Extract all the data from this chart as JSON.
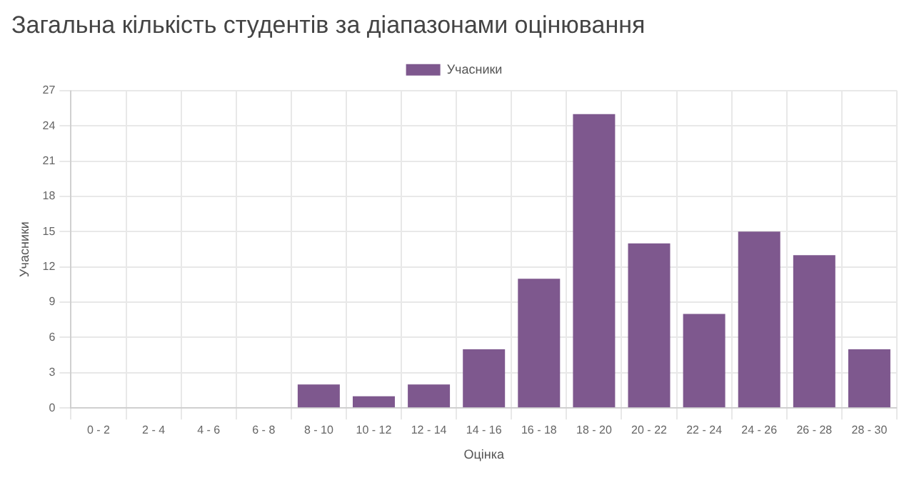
{
  "chart_data": {
    "type": "bar",
    "title": "Загальна кількість студентів за діапазонами оцінювання",
    "xlabel": "Оцінка",
    "ylabel": "Учасники",
    "categories": [
      "0 - 2",
      "2 - 4",
      "4 - 6",
      "6 - 8",
      "8 - 10",
      "10 - 12",
      "12 - 14",
      "14 - 16",
      "16 - 18",
      "18 - 20",
      "20 - 22",
      "22 - 24",
      "24 - 26",
      "26 - 28",
      "28 - 30"
    ],
    "series": [
      {
        "name": "Учасники",
        "color": "#7e588e",
        "values": [
          0,
          0,
          0,
          0,
          2,
          1,
          2,
          5,
          11,
          25,
          14,
          8,
          15,
          13,
          5
        ]
      }
    ],
    "ylim": [
      0,
      27
    ],
    "yticks": [
      0,
      3,
      6,
      9,
      12,
      15,
      18,
      21,
      24,
      27
    ],
    "grid": true,
    "legend": "top"
  }
}
